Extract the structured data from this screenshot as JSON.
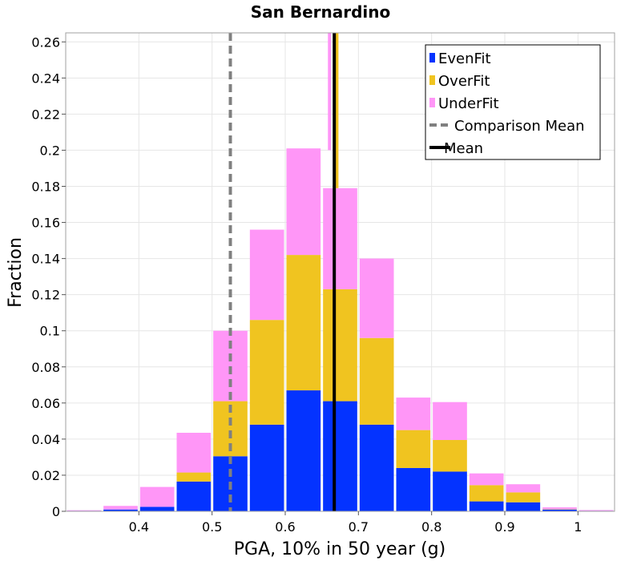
{
  "chart_data": {
    "type": "bar",
    "stacked": true,
    "title": "San Bernardino",
    "xlabel": "PGA, 10% in 50 year (g)",
    "ylabel": "Fraction",
    "xlim": [
      0.3,
      1.05
    ],
    "ylim": [
      0,
      0.265
    ],
    "x_ticks": [
      0.4,
      0.5,
      0.6,
      0.7,
      0.8,
      0.9,
      1
    ],
    "x_tick_labels": [
      "0.4",
      "0.5",
      "0.6",
      "0.7",
      "0.8",
      "0.9",
      "1"
    ],
    "y_ticks": [
      0,
      0.02,
      0.04,
      0.06,
      0.08,
      0.1,
      0.12,
      0.14,
      0.16,
      0.18,
      0.2,
      0.22,
      0.24,
      0.26
    ],
    "y_tick_labels": [
      "0",
      "0.02",
      "0.04",
      "0.06",
      "0.08",
      "0.1",
      "0.12",
      "0.14",
      "0.16",
      "0.18",
      "0.2",
      "0.22",
      "0.24",
      "0.26"
    ],
    "grid": true,
    "legend_position": "top-right",
    "bin_width": 0.05,
    "bin_centers": [
      0.325,
      0.375,
      0.425,
      0.475,
      0.525,
      0.575,
      0.625,
      0.675,
      0.725,
      0.775,
      0.825,
      0.875,
      0.925,
      0.975,
      1.025
    ],
    "series": [
      {
        "name": "EvenFit",
        "color": "#0433ff",
        "values": [
          0.0003,
          0.001,
          0.0025,
          0.0165,
          0.0305,
          0.048,
          0.067,
          0.061,
          0.048,
          0.024,
          0.022,
          0.0055,
          0.005,
          0.001,
          0.0003
        ]
      },
      {
        "name": "OverFit",
        "color": "#f0c420",
        "values": [
          0,
          0,
          0,
          0.005,
          0.0305,
          0.058,
          0.075,
          0.062,
          0.048,
          0.021,
          0.0175,
          0.009,
          0.0055,
          0.0002,
          0
        ]
      },
      {
        "name": "UnderFit",
        "color": "#ff96f7",
        "values": [
          0.0003,
          0.002,
          0.011,
          0.022,
          0.039,
          0.05,
          0.059,
          0.056,
          0.044,
          0.018,
          0.021,
          0.0065,
          0.0045,
          0.001,
          0.0004
        ]
      }
    ],
    "vertical_lines": [
      {
        "name": "Comparison Mean",
        "x": 0.525,
        "color": "#808080",
        "style": "dashed"
      },
      {
        "name": "Mean",
        "x": 0.667,
        "color": "#000000",
        "style": "solid"
      }
    ],
    "partial_lines": [
      {
        "x": 0.6605,
        "ymin": 0.2,
        "color": "#ff96f7"
      },
      {
        "x": 0.6705,
        "ymin": 0.179,
        "color": "#f0c420"
      }
    ],
    "legend": [
      {
        "label": "EvenFit",
        "kind": "box",
        "color": "#0433ff"
      },
      {
        "label": "OverFit",
        "kind": "box",
        "color": "#f0c420"
      },
      {
        "label": "UnderFit",
        "kind": "box",
        "color": "#ff96f7"
      },
      {
        "label": "Comparison Mean",
        "kind": "dashed",
        "color": "#808080"
      },
      {
        "label": "Mean",
        "kind": "solid",
        "color": "#000000"
      }
    ]
  }
}
